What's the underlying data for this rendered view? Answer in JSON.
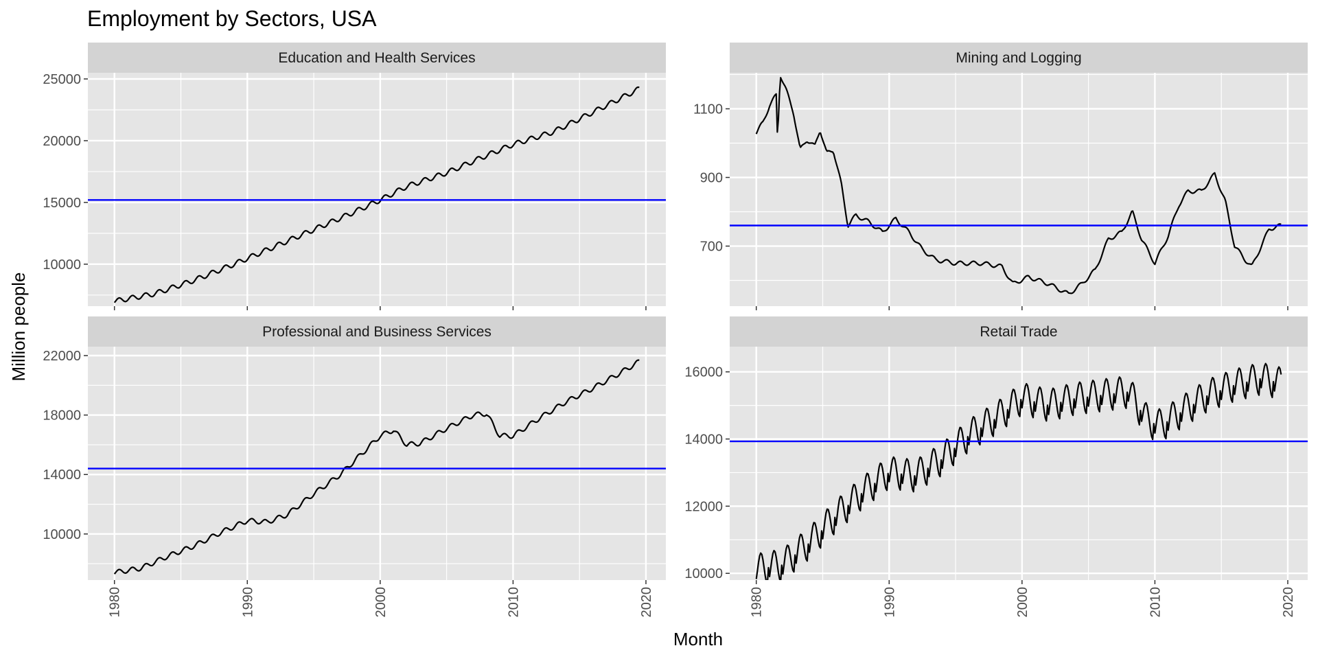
{
  "chart_data": {
    "type": "line",
    "title": "Employment by Sectors, USA",
    "xlabel": "Month",
    "ylabel": "Million people",
    "x_range": [
      1980,
      2019.6
    ],
    "x_ticks": [
      1980,
      1990,
      2000,
      2010,
      2020
    ],
    "x_tick_labels": [
      "1980",
      "1990",
      "2000",
      "2010",
      "2020"
    ],
    "grid": true,
    "legend": "none",
    "colors": {
      "series": "#000000",
      "mean_line": "#0000ff",
      "panel_bg": "#e5e5e5",
      "strip_bg": "#d3d3d3",
      "grid": "#ffffff",
      "tick": "#4d4d4d"
    },
    "panels": [
      {
        "strip": "Education and Health Services",
        "ylim": [
          6600,
          25500
        ],
        "y_ticks": [
          10000,
          15000,
          20000,
          25000
        ],
        "y_tick_labels": [
          "10000",
          "15000",
          "20000",
          "25000"
        ],
        "mean": 15200,
        "seasonal_amp": 200,
        "points": [
          [
            1980,
            7000
          ],
          [
            1983,
            7600
          ],
          [
            1986,
            8700
          ],
          [
            1989,
            10000
          ],
          [
            1992,
            11400
          ],
          [
            1995,
            12800
          ],
          [
            1998,
            14200
          ],
          [
            2000,
            15200
          ],
          [
            2002,
            16300
          ],
          [
            2005,
            17400
          ],
          [
            2008,
            18800
          ],
          [
            2010,
            19700
          ],
          [
            2013,
            20700
          ],
          [
            2016,
            22300
          ],
          [
            2019.5,
            24200
          ]
        ]
      },
      {
        "strip": "Mining and Logging",
        "ylim": [
          525,
          1205
        ],
        "y_ticks": [
          700,
          900,
          1100
        ],
        "y_tick_labels": [
          "700",
          "900",
          "1100"
        ],
        "mean": 760,
        "seasonal_amp": 6,
        "points": [
          [
            1980,
            1030
          ],
          [
            1980.5,
            1060
          ],
          [
            1981,
            1110
          ],
          [
            1981.5,
            1140
          ],
          [
            1981.6,
            1010
          ],
          [
            1981.8,
            1200
          ],
          [
            1982.2,
            1160
          ],
          [
            1982.8,
            1090
          ],
          [
            1983.3,
            980
          ],
          [
            1983.8,
            1010
          ],
          [
            1984.4,
            990
          ],
          [
            1984.8,
            1040
          ],
          [
            1985.3,
            970
          ],
          [
            1985.8,
            980
          ],
          [
            1986.4,
            880
          ],
          [
            1986.9,
            760
          ],
          [
            1987.5,
            790
          ],
          [
            1988.5,
            770
          ],
          [
            1989.5,
            740
          ],
          [
            1990.5,
            780
          ],
          [
            1991.5,
            740
          ],
          [
            1992.5,
            690
          ],
          [
            1993.5,
            660
          ],
          [
            1995,
            650
          ],
          [
            1997,
            650
          ],
          [
            1998.5,
            640
          ],
          [
            1999.3,
            590
          ],
          [
            2000.5,
            610
          ],
          [
            2002,
            590
          ],
          [
            2003.5,
            560
          ],
          [
            2004.5,
            590
          ],
          [
            2005.5,
            630
          ],
          [
            2006.5,
            720
          ],
          [
            2007.5,
            740
          ],
          [
            2008.3,
            800
          ],
          [
            2009,
            720
          ],
          [
            2010,
            650
          ],
          [
            2011,
            730
          ],
          [
            2011.8,
            820
          ],
          [
            2012.5,
            860
          ],
          [
            2013.5,
            860
          ],
          [
            2014.5,
            910
          ],
          [
            2015.3,
            830
          ],
          [
            2016,
            700
          ],
          [
            2016.8,
            660
          ],
          [
            2017.3,
            640
          ],
          [
            2018,
            700
          ],
          [
            2018.6,
            750
          ],
          [
            2019.5,
            760
          ]
        ]
      },
      {
        "strip": "Professional and Business Services",
        "ylim": [
          6900,
          22600
        ],
        "y_ticks": [
          10000,
          14000,
          18000,
          22000
        ],
        "y_tick_labels": [
          "10000",
          "14000",
          "18000",
          "22000"
        ],
        "mean": 14400,
        "seasonal_amp": 160,
        "points": [
          [
            1980,
            7400
          ],
          [
            1982,
            7700
          ],
          [
            1984,
            8500
          ],
          [
            1986,
            9200
          ],
          [
            1988,
            10100
          ],
          [
            1990,
            10900
          ],
          [
            1991.5,
            10800
          ],
          [
            1993,
            11300
          ],
          [
            1995,
            12700
          ],
          [
            1997,
            14000
          ],
          [
            1998.5,
            15300
          ],
          [
            2000,
            16600
          ],
          [
            2001,
            17000
          ],
          [
            2002,
            16000
          ],
          [
            2003,
            16100
          ],
          [
            2005,
            17100
          ],
          [
            2007,
            18000
          ],
          [
            2008,
            18100
          ],
          [
            2009,
            16600
          ],
          [
            2010,
            16600
          ],
          [
            2012,
            17800
          ],
          [
            2014,
            18900
          ],
          [
            2016,
            19800
          ],
          [
            2018,
            20800
          ],
          [
            2019.5,
            21600
          ]
        ]
      },
      {
        "strip": "Retail Trade",
        "ylim": [
          9800,
          16750
        ],
        "y_ticks": [
          10000,
          12000,
          14000,
          16000
        ],
        "y_tick_labels": [
          "10000",
          "12000",
          "14000",
          "16000"
        ],
        "mean": 13930,
        "seasonal_amp": 480,
        "points": [
          [
            1980,
            10100
          ],
          [
            1982,
            10250
          ],
          [
            1984,
            10900
          ],
          [
            1986,
            11700
          ],
          [
            1988,
            12400
          ],
          [
            1990,
            13000
          ],
          [
            1992,
            12900
          ],
          [
            1994,
            13400
          ],
          [
            1996,
            14100
          ],
          [
            1998,
            14600
          ],
          [
            2000,
            15200
          ],
          [
            2002,
            15000
          ],
          [
            2004,
            15200
          ],
          [
            2006,
            15300
          ],
          [
            2008,
            15400
          ],
          [
            2009.5,
            14500
          ],
          [
            2010.5,
            14400
          ],
          [
            2012,
            14800
          ],
          [
            2014,
            15300
          ],
          [
            2016,
            15600
          ],
          [
            2018,
            15800
          ],
          [
            2019.5,
            15650
          ]
        ]
      }
    ]
  }
}
